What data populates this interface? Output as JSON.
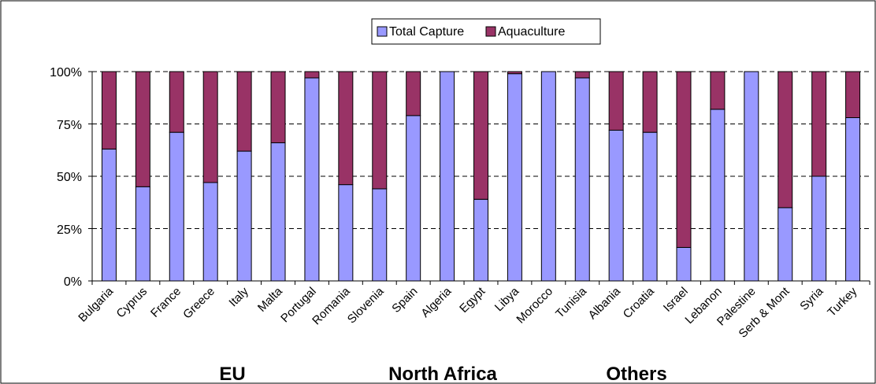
{
  "chart_data": {
    "type": "bar",
    "stacked": true,
    "categories": [
      "Bulgaria",
      "Cyprus",
      "France",
      "Greece",
      "Italy",
      "Malta",
      "Portugal",
      "Romania",
      "Slovenia",
      "Spain",
      "Algeria",
      "Egypt",
      "Libya",
      "Morocco",
      "Tunisia",
      "Albania",
      "Croatia",
      "Israel",
      "Lebanon",
      "Palestine",
      "Serb & Mont",
      "Syria",
      "Turkey"
    ],
    "series": [
      {
        "name": "Total Capture",
        "color": "#9999ff",
        "values": [
          63,
          45,
          71,
          47,
          62,
          66,
          97,
          46,
          44,
          79,
          100,
          39,
          99,
          100,
          97,
          72,
          71,
          16,
          82,
          100,
          35,
          50,
          78
        ]
      },
      {
        "name": "Aquaculture",
        "color": "#993366",
        "values": [
          37,
          55,
          29,
          53,
          38,
          34,
          3,
          54,
          56,
          21,
          0,
          61,
          1,
          0,
          3,
          28,
          29,
          84,
          18,
          0,
          65,
          50,
          22
        ]
      }
    ],
    "y_tick_labels": [
      "0%",
      "25%",
      "50%",
      "75%",
      "100%"
    ],
    "ylim": [
      0,
      100
    ],
    "grid": true,
    "legend_position": "top-center",
    "groups": [
      {
        "label": "EU"
      },
      {
        "label": "North Africa"
      },
      {
        "label": "Others"
      }
    ]
  }
}
